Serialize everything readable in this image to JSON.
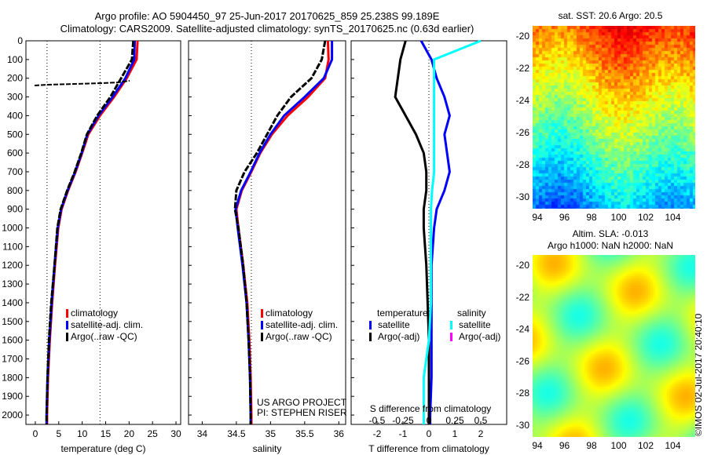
{
  "title_line1": "Argo profile: AO 5904450_97 25-Jun-2017 20170625_859 25.238S 99.189E",
  "title_line2": "Climatology: CARS2009. Satellite-adjusted climatology: synTS_20170625.nc (0.63d earlier)",
  "map_top_title": "sat. SST: 20.6 Argo: 20.5",
  "map_bottom_title1": "Altim. SLA: -0.013",
  "map_bottom_title2": "Argo h1000: NaN h2000: NaN",
  "credit": "©IMOS 02-Jul-2017 20:40:10",
  "project_line1": "US ARGO PROJECT",
  "project_line2": "PI: STEPHEN RISER",
  "map_lon_ticks": [
    "94",
    "96",
    "98",
    "100",
    "102",
    "104"
  ],
  "map_lat_ticks": [
    "-20",
    "-22",
    "-24",
    "-26",
    "-28",
    "-30"
  ],
  "colors": {
    "climatology": "#ff0000",
    "satellite": "#0000ff",
    "argo": "#000000",
    "sal_satellite": "#00ffff",
    "sal_argo": "#ff00ff"
  },
  "chart_data": [
    {
      "type": "line",
      "xlabel": "temperature (deg C)",
      "ylabel": "",
      "xlim": [
        -2,
        31
      ],
      "ylim": [
        2050,
        0
      ],
      "xticks": [
        "0",
        "5",
        "10",
        "15",
        "20",
        "25",
        "30"
      ],
      "yticks": [
        "0",
        "100",
        "200",
        "300",
        "400",
        "500",
        "600",
        "700",
        "800",
        "900",
        "1000",
        "1100",
        "1200",
        "1300",
        "1400",
        "1500",
        "1600",
        "1700",
        "1800",
        "1900",
        "2000"
      ],
      "legend": [
        "climatology",
        "satellite-adj. clim.",
        "Argo(..raw -QC)"
      ],
      "depth": [
        0,
        100,
        200,
        300,
        400,
        500,
        600,
        700,
        800,
        900,
        1000,
        1200,
        1400,
        1600,
        1800,
        2000,
        2050
      ],
      "series": [
        {
          "name": "climatology",
          "values": [
            21.8,
            21.6,
            19.5,
            16.8,
            13.8,
            11.3,
            10,
            8.6,
            7,
            5.6,
            4.9,
            4.2,
            3.6,
            3.1,
            2.7,
            2.5,
            2.5
          ]
        },
        {
          "name": "satellite-adj. clim.",
          "values": [
            21.2,
            21.1,
            19.2,
            16.5,
            13.5,
            11.1,
            9.9,
            8.5,
            6.9,
            5.5,
            4.8,
            4.1,
            3.5,
            3,
            2.6,
            2.4,
            2.4
          ]
        },
        {
          "name": "Argo(..raw -QC)",
          "values": [
            20.9,
            20.6,
            18.3,
            16,
            13.2,
            11,
            9.8,
            8.4,
            6.8,
            5.4,
            4.7,
            4.1,
            3.4,
            2.9,
            2.6,
            2.4,
            2.4
          ]
        }
      ]
    },
    {
      "type": "line",
      "xlabel": "salinity",
      "xlim": [
        33.8,
        36.1
      ],
      "ylim": [
        2050,
        0
      ],
      "xticks": [
        "34",
        "34.5",
        "35",
        "35.5",
        "36"
      ],
      "legend": [
        "climatology",
        "satellite-adj. clim.",
        "Argo(..raw -QC)"
      ],
      "depth": [
        0,
        100,
        200,
        300,
        400,
        500,
        600,
        700,
        800,
        900,
        1000,
        1200,
        1400,
        1600,
        1800,
        2000,
        2050
      ],
      "series": [
        {
          "name": "climatology",
          "values": [
            35.84,
            35.85,
            35.8,
            35.55,
            35.25,
            35.02,
            34.85,
            34.72,
            34.58,
            34.5,
            34.53,
            34.6,
            34.66,
            34.69,
            34.71,
            34.72,
            34.72
          ]
        },
        {
          "name": "satellite-adj. clim.",
          "values": [
            35.9,
            35.9,
            35.78,
            35.5,
            35.2,
            35,
            34.84,
            34.71,
            34.57,
            34.49,
            34.52,
            34.59,
            34.65,
            34.68,
            34.7,
            34.71,
            34.71
          ]
        },
        {
          "name": "Argo(..raw -QC)",
          "values": [
            35.8,
            35.75,
            35.6,
            35.3,
            35.1,
            34.95,
            34.8,
            34.62,
            34.5,
            34.48,
            34.53,
            34.6,
            34.65,
            34.68,
            34.7,
            34.71,
            34.71
          ]
        }
      ]
    },
    {
      "type": "line",
      "xlabel": "T difference from climatology",
      "x2label": "S difference from climatology",
      "xlim": [
        -3,
        3
      ],
      "ylim": [
        2050,
        0
      ],
      "xticks": [
        "-2",
        "-1",
        "0",
        "1",
        "2"
      ],
      "x2ticks": [
        "-0.5",
        "-0.25",
        "0",
        "0.25",
        "0.5"
      ],
      "legend_temperature_title": "temperature",
      "legend_salinity_title": "salinity",
      "legend": [
        "satellite",
        "Argo(-adj)",
        "satellite",
        "Argo(-adj)"
      ],
      "depth": [
        0,
        100,
        200,
        300,
        400,
        500,
        600,
        700,
        800,
        900,
        1000,
        1200,
        1400,
        1600,
        1800,
        2000,
        2050
      ],
      "series": [
        {
          "name": "T satellite",
          "values": [
            -0.3,
            0.1,
            0.3,
            0.6,
            0.8,
            0.6,
            0.7,
            0.8,
            0.6,
            0.3,
            0.2,
            0.1,
            0.1,
            0.1,
            0.1,
            0.05,
            0.05
          ]
        },
        {
          "name": "T Argo(-adj)",
          "values": [
            -0.9,
            -1.1,
            -1.2,
            -1.3,
            -0.9,
            -0.5,
            -0.2,
            -0.1,
            -0.1,
            -0.2,
            -0.2,
            -0.1,
            -0.05,
            0,
            0,
            0,
            0
          ]
        },
        {
          "name": "S satellite",
          "values": [
            0.5,
            0.05,
            0.05,
            0.05,
            0.05,
            0.05,
            0.05,
            0.05,
            0.03,
            0.02,
            0.02,
            0.02,
            0.02,
            0,
            -0.05,
            -0.05,
            -0.05
          ]
        }
      ]
    }
  ]
}
